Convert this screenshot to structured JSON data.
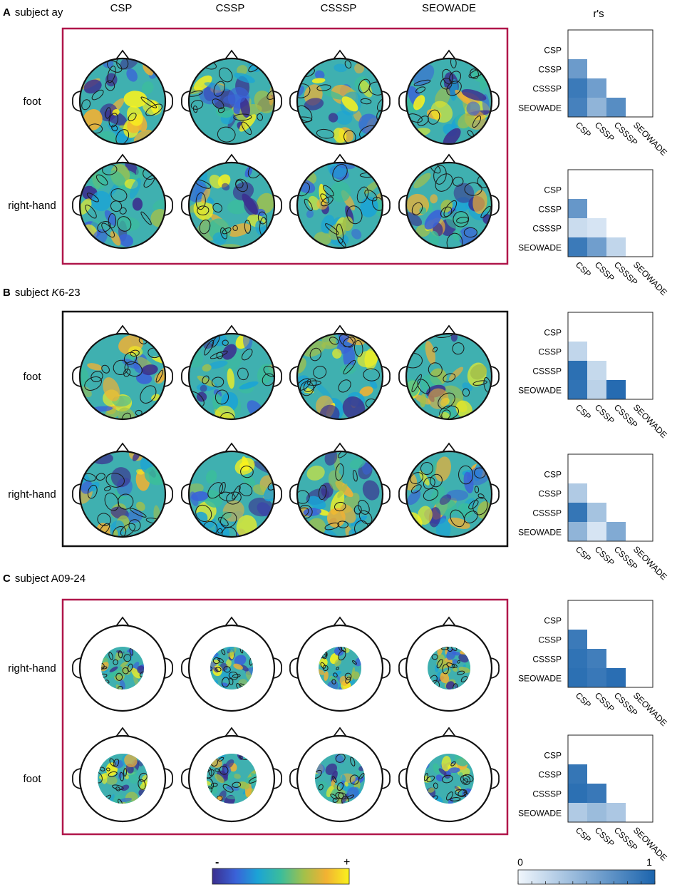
{
  "columns": [
    "CSP",
    "CSSP",
    "CSSSP",
    "SEOWADE"
  ],
  "corr_title": "r's",
  "panels": [
    {
      "letter": "A",
      "subject_prefix": "subject ",
      "subject_italic": "",
      "subject_suffix": "ay",
      "frame_color": "#b0164a",
      "rows": [
        "foot",
        "right-hand"
      ]
    },
    {
      "letter": "B",
      "subject_prefix": "subject ",
      "subject_italic": "K",
      "subject_suffix": "6-23",
      "frame_color": "#111111",
      "rows": [
        "foot",
        "right-hand"
      ]
    },
    {
      "letter": "C",
      "subject_prefix": "subject ",
      "subject_italic": "",
      "subject_suffix": "A09-24",
      "frame_color": "#b0164a",
      "rows": [
        "right-hand",
        "foot"
      ]
    }
  ],
  "chart_data": {
    "type": "heatmap",
    "title": "r's",
    "row_labels": [
      "CSP",
      "CSSP",
      "CSSSP",
      "SEOWADE"
    ],
    "col_labels": [
      "CSP",
      "CSSP",
      "CSSSP",
      "SEOWADE"
    ],
    "value_range": [
      0,
      1
    ],
    "matrices": [
      {
        "panel": "A",
        "row": "foot",
        "lower": [
          [
            0.62
          ],
          [
            0.85,
            0.6
          ],
          [
            0.8,
            0.45,
            0.72
          ]
        ]
      },
      {
        "panel": "A",
        "row": "right-hand",
        "lower": [
          [
            0.65
          ],
          [
            0.18,
            0.12
          ],
          [
            0.85,
            0.6,
            0.22
          ]
        ]
      },
      {
        "panel": "B",
        "row": "foot",
        "lower": [
          [
            0.22
          ],
          [
            0.92,
            0.2
          ],
          [
            0.9,
            0.25,
            0.95
          ]
        ]
      },
      {
        "panel": "B",
        "row": "right-hand",
        "lower": [
          [
            0.3
          ],
          [
            0.88,
            0.35
          ],
          [
            0.45,
            0.12,
            0.52
          ]
        ]
      },
      {
        "panel": "C",
        "row": "right-hand",
        "lower": [
          [
            0.85
          ],
          [
            0.9,
            0.82
          ],
          [
            0.92,
            0.86,
            0.93
          ]
        ]
      },
      {
        "panel": "C",
        "row": "foot",
        "lower": [
          [
            0.88
          ],
          [
            0.92,
            0.86
          ],
          [
            0.3,
            0.4,
            0.32
          ]
        ]
      }
    ]
  },
  "colorbars": {
    "topo": {
      "min_label": "-",
      "max_label": "+",
      "colors": [
        "#3b2f8f",
        "#3a62d8",
        "#1ba3d6",
        "#3bbd9b",
        "#a3c04a",
        "#f2b133",
        "#f9f21d"
      ]
    },
    "corr": {
      "min_label": "0",
      "max_label": "1",
      "low_color": "#f0f6fc",
      "high_color": "#1b64ad"
    }
  }
}
